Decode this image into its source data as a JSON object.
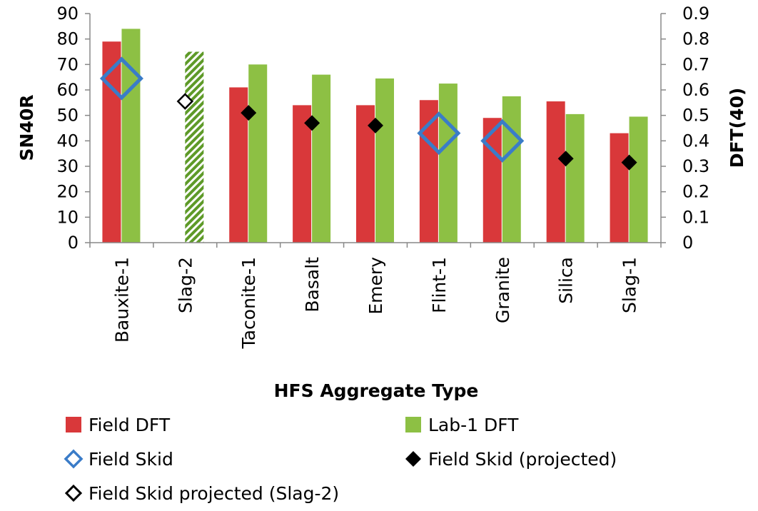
{
  "chart_data": {
    "type": "bar",
    "title": "",
    "xlabel": "HFS Aggregate Type",
    "ylabel": "SN40R",
    "y2label": "DFT(40)",
    "ylim": [
      0,
      90
    ],
    "y2lim": [
      0,
      0.9
    ],
    "yticks": [
      "0",
      "10",
      "20",
      "30",
      "40",
      "50",
      "60",
      "70",
      "80",
      "90"
    ],
    "y2ticks": [
      "0",
      "0.1",
      "0.2",
      "0.3",
      "0.4",
      "0.5",
      "0.6",
      "0.7",
      "0.8",
      "0.9"
    ],
    "categories": [
      "Bauxite-1",
      "Slag-2",
      "Taconite-1",
      "Basalt",
      "Emery",
      "Flint-1",
      "Granite",
      "Silica",
      "Slag-1"
    ],
    "legend_position": "bottom",
    "series": [
      {
        "name": "Field DFT",
        "kind": "bar",
        "axis": "right",
        "color": "#d9383a",
        "values": [
          0.79,
          null,
          0.61,
          0.54,
          0.54,
          0.56,
          0.49,
          0.555,
          0.43
        ]
      },
      {
        "name": "Lab-1 DFT",
        "kind": "bar",
        "axis": "right",
        "color": "#8dc044",
        "hatched_category": "Slag-2",
        "values": [
          0.84,
          0.75,
          0.7,
          0.66,
          0.645,
          0.625,
          0.575,
          0.505,
          0.495
        ]
      },
      {
        "name": "Field Skid",
        "kind": "marker",
        "marker": "open-diamond-large",
        "axis": "left",
        "color": "#3a7cc8",
        "values": [
          64.5,
          null,
          null,
          null,
          null,
          43,
          40,
          null,
          null
        ]
      },
      {
        "name": "Field Skid (projected)",
        "kind": "marker",
        "marker": "filled-diamond",
        "axis": "left",
        "color": "#000000",
        "values": [
          null,
          null,
          51,
          47,
          46,
          null,
          null,
          33,
          31.5
        ]
      },
      {
        "name": "Field Skid projected (Slag-2)",
        "kind": "marker",
        "marker": "open-diamond",
        "axis": "left",
        "color": "#000000",
        "values": [
          null,
          55.5,
          null,
          null,
          null,
          null,
          null,
          null,
          null
        ]
      }
    ]
  }
}
